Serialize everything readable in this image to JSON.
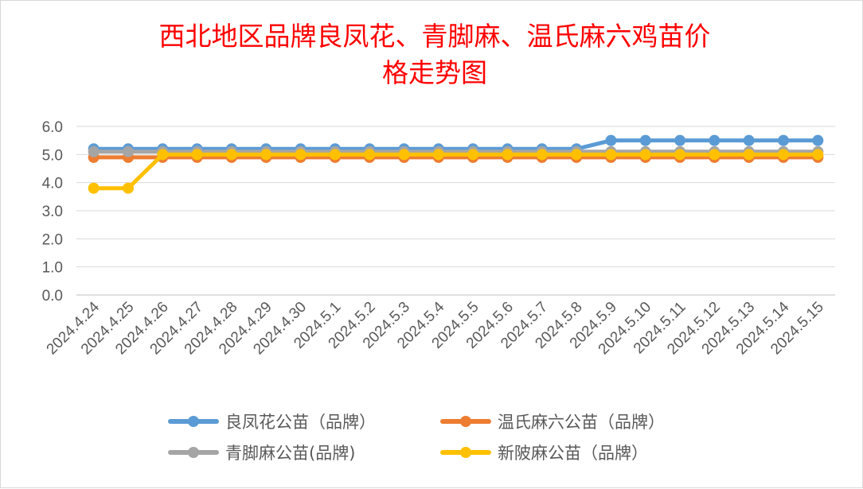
{
  "chart_data": {
    "type": "line",
    "title_lines": [
      "西北地区品牌良凤花、青脚麻、温氏麻六鸡苗价",
      "格走势图"
    ],
    "xlabel": "",
    "ylabel": "",
    "ylim": [
      0,
      6
    ],
    "yticks": [
      "0.0",
      "1.0",
      "2.0",
      "3.0",
      "4.0",
      "5.0",
      "6.0"
    ],
    "grid": true,
    "legend_position": "bottom",
    "categories": [
      "2024.4.24",
      "2024.4.25",
      "2024.4.26",
      "2024.4.27",
      "2024.4.28",
      "2024.4.29",
      "2024.4.30",
      "2024.5.1",
      "2024.5.2",
      "2024.5.3",
      "2024.5.4",
      "2024.5.5",
      "2024.5.6",
      "2024.5.7",
      "2024.5.8",
      "2024.5.9",
      "2024.5.10",
      "2024.5.11",
      "2024.5.12",
      "2024.5.13",
      "2024.5.14",
      "2024.5.15"
    ],
    "series": [
      {
        "name": "良凤花公苗（品牌）",
        "color": "#5b9bd5",
        "values": [
          5.2,
          5.2,
          5.2,
          5.2,
          5.2,
          5.2,
          5.2,
          5.2,
          5.2,
          5.2,
          5.2,
          5.2,
          5.2,
          5.2,
          5.2,
          5.5,
          5.5,
          5.5,
          5.5,
          5.5,
          5.5,
          5.5
        ]
      },
      {
        "name": "温氏麻六公苗（品牌）",
        "color": "#ed7d31",
        "values": [
          4.9,
          4.9,
          4.9,
          4.9,
          4.9,
          4.9,
          4.9,
          4.9,
          4.9,
          4.9,
          4.9,
          4.9,
          4.9,
          4.9,
          4.9,
          4.9,
          4.9,
          4.9,
          4.9,
          4.9,
          4.9,
          4.9
        ]
      },
      {
        "name": "青脚麻公苗(品牌)",
        "color": "#a5a5a5",
        "values": [
          5.1,
          5.1,
          5.1,
          5.1,
          5.1,
          5.1,
          5.1,
          5.1,
          5.1,
          5.1,
          5.1,
          5.1,
          5.1,
          5.1,
          5.1,
          5.1,
          5.1,
          5.1,
          5.1,
          5.1,
          5.1,
          5.1
        ]
      },
      {
        "name": "新陂麻公苗（品牌）",
        "color": "#ffc000",
        "values": [
          3.8,
          3.8,
          5.0,
          5.0,
          5.0,
          5.0,
          5.0,
          5.0,
          5.0,
          5.0,
          5.0,
          5.0,
          5.0,
          5.0,
          5.0,
          5.0,
          5.0,
          5.0,
          5.0,
          5.0,
          5.0,
          5.0
        ]
      }
    ]
  }
}
